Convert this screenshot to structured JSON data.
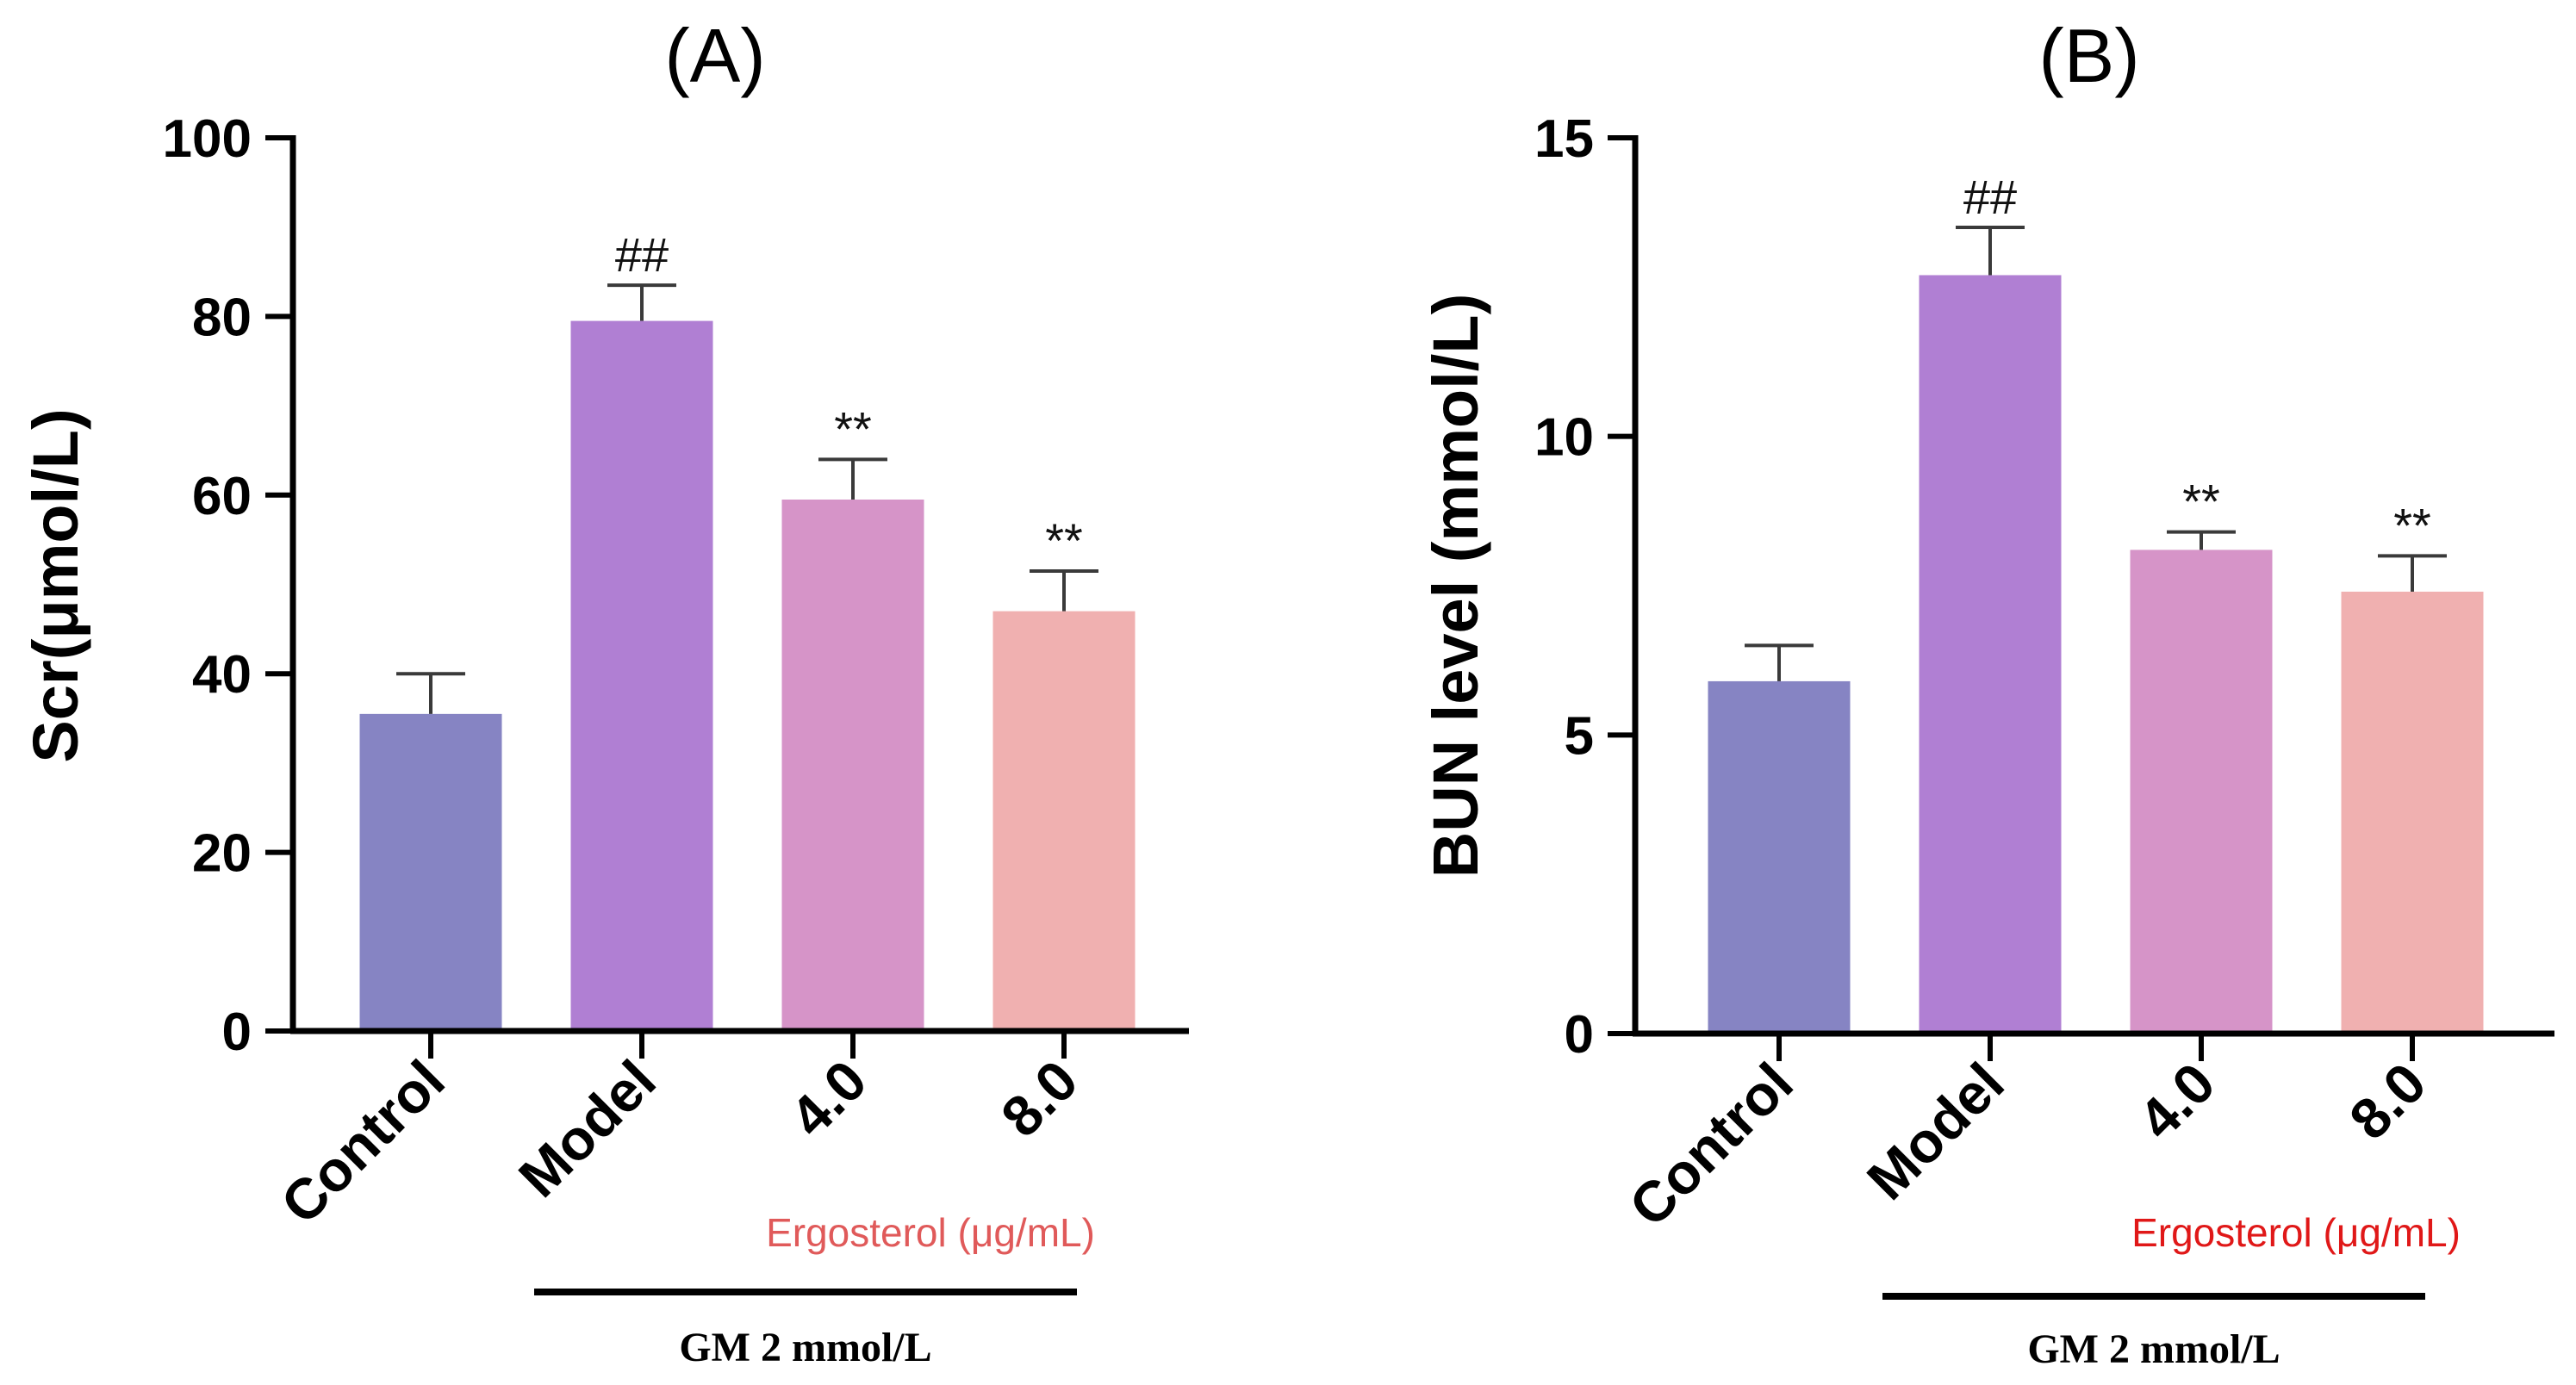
{
  "chart_data": [
    {
      "type": "bar",
      "panel": "(A)",
      "title": "(A)",
      "ylabel": "Scr(μmol/L)",
      "xlabel": "",
      "ylim": [
        0,
        100
      ],
      "yticks": [
        0,
        20,
        40,
        60,
        80,
        100
      ],
      "tick_labels": [
        "0",
        "20",
        "40",
        "60",
        "80",
        "100"
      ],
      "categories": [
        "Control",
        "Model",
        "4.0",
        "8.0"
      ],
      "values": [
        35.5,
        79.5,
        59.5,
        47.0
      ],
      "errors": [
        4.5,
        4.0,
        4.5,
        4.5
      ],
      "colors": [
        "#8684c3",
        "#b07fd3",
        "#d694c8",
        "#f0b0b0"
      ],
      "significance": [
        "",
        "##",
        "**",
        "**"
      ],
      "ergosterol_label": "Ergosterol (μg/mL)",
      "ergosterol_color": "#e05a5a",
      "group_label": "GM 2 mmol/L"
    },
    {
      "type": "bar",
      "panel": "(B)",
      "title": "(B)",
      "ylabel": "BUN level (mmol/L)",
      "xlabel": "",
      "ylim": [
        0,
        15
      ],
      "yticks": [
        0,
        5,
        10,
        15
      ],
      "tick_labels": [
        "0",
        "5",
        "10",
        "15"
      ],
      "categories": [
        "Control",
        "Model",
        "4.0",
        "8.0"
      ],
      "values": [
        5.9,
        12.7,
        8.1,
        7.4
      ],
      "errors": [
        0.6,
        0.8,
        0.3,
        0.6
      ],
      "colors": [
        "#8684c3",
        "#b07fd3",
        "#d694c8",
        "#f0b0b0"
      ],
      "significance": [
        "",
        "##",
        "**",
        "**"
      ],
      "ergosterol_label": "Ergosterol (μg/mL)",
      "ergosterol_color": "#e01818",
      "group_label": "GM 2 mmol/L"
    }
  ]
}
